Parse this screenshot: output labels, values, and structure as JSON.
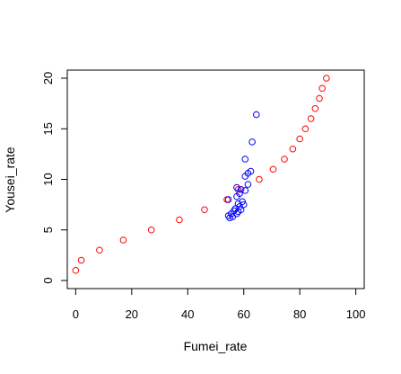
{
  "chart_data": {
    "type": "scatter",
    "xlabel": "Fumei_rate",
    "ylabel": "Yousei_rate",
    "xlim": [
      -3,
      103
    ],
    "ylim": [
      -0.8,
      20.8
    ],
    "x_ticks": [
      0,
      20,
      40,
      60,
      80,
      100
    ],
    "y_ticks": [
      0,
      5,
      10,
      15,
      20
    ],
    "grid": false,
    "legend": "none",
    "series": [
      {
        "color": "#ff0000",
        "marker": "open-circle",
        "points": [
          {
            "x": 0,
            "y": 1
          },
          {
            "x": 2,
            "y": 2
          },
          {
            "x": 8.5,
            "y": 3
          },
          {
            "x": 17,
            "y": 4
          },
          {
            "x": 27,
            "y": 5
          },
          {
            "x": 37,
            "y": 6
          },
          {
            "x": 46,
            "y": 7
          },
          {
            "x": 54,
            "y": 8
          },
          {
            "x": 58,
            "y": 9
          },
          {
            "x": 65.5,
            "y": 10
          },
          {
            "x": 70.5,
            "y": 11
          },
          {
            "x": 74.5,
            "y": 12
          },
          {
            "x": 77.5,
            "y": 13
          },
          {
            "x": 80,
            "y": 14
          },
          {
            "x": 82,
            "y": 15
          },
          {
            "x": 84,
            "y": 16
          },
          {
            "x": 85.5,
            "y": 17
          },
          {
            "x": 87,
            "y": 18
          },
          {
            "x": 88,
            "y": 19
          },
          {
            "x": 89.5,
            "y": 20
          }
        ]
      },
      {
        "color": "#0000ff",
        "marker": "open-circle",
        "points": [
          {
            "x": 64.5,
            "y": 16.4
          },
          {
            "x": 63,
            "y": 13.7
          },
          {
            "x": 60.5,
            "y": 12.0
          },
          {
            "x": 62.5,
            "y": 10.8
          },
          {
            "x": 61.5,
            "y": 10.6
          },
          {
            "x": 60.5,
            "y": 10.3
          },
          {
            "x": 61.5,
            "y": 9.5
          },
          {
            "x": 57.5,
            "y": 9.2
          },
          {
            "x": 59,
            "y": 9.0
          },
          {
            "x": 60.5,
            "y": 8.9
          },
          {
            "x": 58.5,
            "y": 8.6
          },
          {
            "x": 57.5,
            "y": 8.3
          },
          {
            "x": 54.5,
            "y": 8.0
          },
          {
            "x": 59.5,
            "y": 7.8
          },
          {
            "x": 58,
            "y": 7.6
          },
          {
            "x": 60,
            "y": 7.5
          },
          {
            "x": 58.5,
            "y": 7.3
          },
          {
            "x": 57,
            "y": 7.1
          },
          {
            "x": 59,
            "y": 7.0
          },
          {
            "x": 56.5,
            "y": 6.9
          },
          {
            "x": 58,
            "y": 6.8
          },
          {
            "x": 55.5,
            "y": 6.6
          },
          {
            "x": 57.5,
            "y": 6.6
          },
          {
            "x": 54.5,
            "y": 6.4
          },
          {
            "x": 56,
            "y": 6.3
          },
          {
            "x": 55,
            "y": 6.2
          }
        ]
      }
    ]
  }
}
